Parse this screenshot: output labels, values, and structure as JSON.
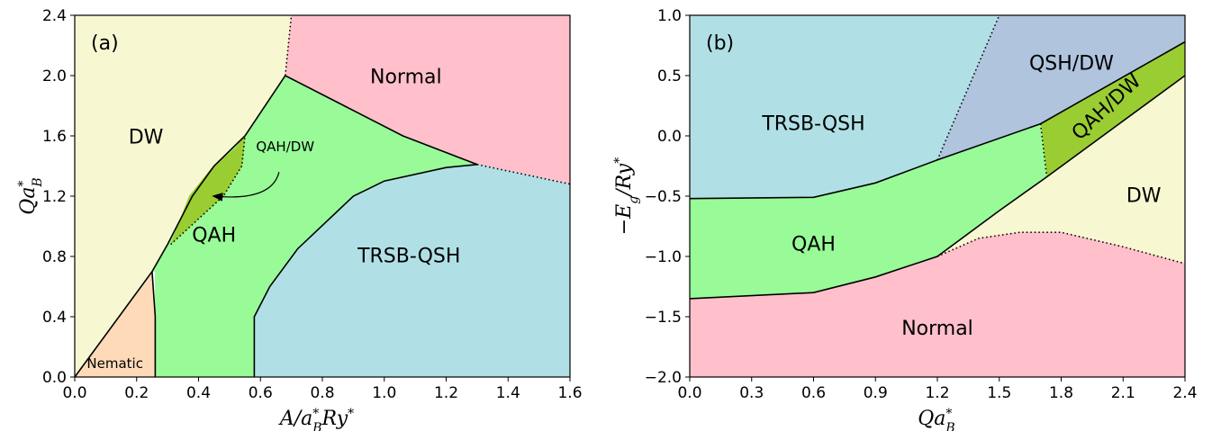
{
  "chart_data": [
    {
      "type": "area",
      "panel_label": "(a)",
      "xlabel": "A/a_B^* Ry^*",
      "ylabel": "Qa_B^*",
      "xlim": [
        0.0,
        1.6
      ],
      "ylim": [
        0.0,
        2.4
      ],
      "xticks": [
        "0.0",
        "0.2",
        "0.4",
        "0.6",
        "0.8",
        "1.0",
        "1.2",
        "1.4",
        "1.6"
      ],
      "yticks": [
        "0.0",
        "0.4",
        "0.8",
        "1.2",
        "1.6",
        "2.0",
        "2.4"
      ],
      "regions": [
        {
          "name": "DW",
          "label": "DW",
          "color": "#f7f7d2",
          "label_at": [
            0.23,
            1.55
          ],
          "polygon": [
            [
              0,
              0
            ],
            [
              0.25,
              0.7
            ],
            [
              0.3,
              0.88
            ],
            [
              0.38,
              1.2
            ],
            [
              0.45,
              1.4
            ],
            [
              0.55,
              1.6
            ],
            [
              0.68,
              2.0
            ],
            [
              0.7,
              2.4
            ],
            [
              0,
              2.4
            ]
          ]
        },
        {
          "name": "Normal",
          "label": "Normal",
          "color": "#ffc0cb",
          "label_at": [
            1.07,
            1.95
          ],
          "polygon": [
            [
              0.7,
              2.4
            ],
            [
              1.6,
              2.4
            ],
            [
              1.6,
              1.28
            ],
            [
              1.3,
              1.41
            ],
            [
              1.06,
              1.6
            ],
            [
              0.68,
              2.0
            ]
          ]
        },
        {
          "name": "QAH",
          "label": "QAH",
          "color": "#98fb98",
          "label_at": [
            0.45,
            0.9
          ],
          "polygon": [
            [
              0.25,
              0.7
            ],
            [
              0.3,
              0.88
            ],
            [
              0.38,
              1.2
            ],
            [
              0.45,
              1.4
            ],
            [
              0.55,
              1.6
            ],
            [
              0.68,
              2.0
            ],
            [
              1.06,
              1.6
            ],
            [
              1.3,
              1.41
            ],
            [
              1.2,
              1.39
            ],
            [
              1.0,
              1.3
            ],
            [
              0.9,
              1.2
            ],
            [
              0.72,
              0.85
            ],
            [
              0.63,
              0.6
            ],
            [
              0.58,
              0.4
            ],
            [
              0.58,
              0.0
            ],
            [
              0.26,
              0.0
            ],
            [
              0.26,
              0.4
            ],
            [
              0.26,
              0.7
            ]
          ]
        },
        {
          "name": "QAH/DW",
          "label": "QAH/DW",
          "color": "#9acd32",
          "label_at": [
            0.68,
            1.5
          ],
          "polygon": [
            [
              0.31,
              0.88
            ],
            [
              0.37,
              1.2
            ],
            [
              0.44,
              1.38
            ],
            [
              0.52,
              1.52
            ],
            [
              0.55,
              1.6
            ],
            [
              0.54,
              1.4
            ],
            [
              0.48,
              1.2
            ]
          ]
        },
        {
          "name": "Nematic",
          "label": "Nematic",
          "color": "#ffdab9",
          "label_at": [
            0.13,
            0.06
          ],
          "polygon": [
            [
              0,
              0
            ],
            [
              0.25,
              0.7
            ],
            [
              0.26,
              0.4
            ],
            [
              0.26,
              0.0
            ]
          ]
        },
        {
          "name": "TRSB-QSH",
          "label": "TRSB-QSH",
          "color": "#b0e0e6",
          "label_at": [
            1.08,
            0.76
          ],
          "polygon": [
            [
              0.58,
              0.0
            ],
            [
              0.58,
              0.4
            ],
            [
              0.63,
              0.6
            ],
            [
              0.72,
              0.85
            ],
            [
              0.9,
              1.2
            ],
            [
              1.0,
              1.3
            ],
            [
              1.2,
              1.39
            ],
            [
              1.3,
              1.41
            ],
            [
              1.6,
              1.28
            ],
            [
              1.6,
              0.0
            ]
          ]
        }
      ],
      "solid_boundaries": [
        [
          [
            0,
            0
          ],
          [
            0.25,
            0.7
          ],
          [
            0.3,
            0.88
          ],
          [
            0.38,
            1.2
          ],
          [
            0.45,
            1.4
          ],
          [
            0.55,
            1.6
          ],
          [
            0.68,
            2.0
          ],
          [
            1.06,
            1.6
          ],
          [
            1.3,
            1.41
          ]
        ],
        [
          [
            0.25,
            0.7
          ],
          [
            0.26,
            0.4
          ],
          [
            0.26,
            0.0
          ]
        ],
        [
          [
            0.58,
            0.0
          ],
          [
            0.58,
            0.4
          ],
          [
            0.63,
            0.6
          ],
          [
            0.72,
            0.85
          ],
          [
            0.9,
            1.2
          ],
          [
            1.0,
            1.3
          ],
          [
            1.2,
            1.39
          ],
          [
            1.3,
            1.41
          ]
        ]
      ],
      "dotted_boundaries": [
        [
          [
            0.68,
            2.0
          ],
          [
            0.7,
            2.4
          ]
        ],
        [
          [
            1.3,
            1.41
          ],
          [
            1.6,
            1.28
          ]
        ],
        [
          [
            0.31,
            0.88
          ],
          [
            0.48,
            1.2
          ],
          [
            0.54,
            1.4
          ],
          [
            0.55,
            1.6
          ]
        ]
      ],
      "arrow": {
        "from": [
          0.66,
          1.36
        ],
        "to": [
          0.45,
          1.2
        ]
      }
    },
    {
      "type": "area",
      "panel_label": "(b)",
      "xlabel": "Qa_B^*",
      "ylabel": "−E_g/Ry^*",
      "xlim": [
        0.0,
        2.4
      ],
      "ylim": [
        -2.0,
        1.0
      ],
      "xticks": [
        "0.0",
        "0.3",
        "0.6",
        "0.9",
        "1.2",
        "1.5",
        "1.8",
        "2.1",
        "2.4"
      ],
      "yticks": [
        "−2.0",
        "−1.5",
        "−1.0",
        "−0.5",
        "0.0",
        "0.5",
        "1.0"
      ],
      "regions": [
        {
          "name": "TRSB-QSH",
          "label": "TRSB-QSH",
          "color": "#b0e0e6",
          "label_at": [
            0.6,
            0.05
          ],
          "polygon": [
            [
              0,
              1.0
            ],
            [
              1.5,
              1.0
            ],
            [
              1.2,
              -0.2
            ],
            [
              0.9,
              -0.39
            ],
            [
              0.6,
              -0.51
            ],
            [
              0,
              -0.52
            ]
          ]
        },
        {
          "name": "QSH/DW",
          "label": "QSH/DW",
          "color": "#b0c4de",
          "label_at": [
            1.85,
            0.55
          ],
          "polygon": [
            [
              1.5,
              1.0
            ],
            [
              2.4,
              1.0
            ],
            [
              2.4,
              0.78
            ],
            [
              1.7,
              0.1
            ],
            [
              1.2,
              -0.2
            ]
          ]
        },
        {
          "name": "QAH/DW",
          "label": "QAH/DW",
          "color": "#9acd32",
          "label_at": [
            2.04,
            0.2
          ],
          "polygon": [
            [
              1.7,
              0.1
            ],
            [
              2.4,
              0.78
            ],
            [
              2.4,
              0.5
            ],
            [
              1.73,
              -0.34
            ]
          ]
        },
        {
          "name": "DW",
          "label": "DW",
          "color": "#f7f7d2",
          "label_at": [
            2.2,
            -0.55
          ],
          "polygon": [
            [
              1.73,
              -0.34
            ],
            [
              2.4,
              0.5
            ],
            [
              2.4,
              -1.06
            ],
            [
              2.1,
              -0.92
            ],
            [
              1.8,
              -0.8
            ],
            [
              1.6,
              -0.8
            ],
            [
              1.4,
              -0.85
            ],
            [
              1.2,
              -1.0
            ],
            [
              1.5,
              -0.62
            ]
          ]
        },
        {
          "name": "QAH",
          "label": "QAH",
          "color": "#98fb98",
          "label_at": [
            0.6,
            -0.95
          ],
          "polygon": [
            [
              0,
              -0.52
            ],
            [
              0.6,
              -0.51
            ],
            [
              0.9,
              -0.39
            ],
            [
              1.2,
              -0.2
            ],
            [
              1.7,
              0.1
            ],
            [
              1.73,
              -0.34
            ],
            [
              1.5,
              -0.62
            ],
            [
              1.2,
              -1.0
            ],
            [
              0.9,
              -1.17
            ],
            [
              0.6,
              -1.3
            ],
            [
              0,
              -1.35
            ]
          ]
        },
        {
          "name": "Normal",
          "label": "Normal",
          "color": "#ffc0cb",
          "label_at": [
            1.2,
            -1.65
          ],
          "polygon": [
            [
              0,
              -1.35
            ],
            [
              0.6,
              -1.3
            ],
            [
              0.9,
              -1.17
            ],
            [
              1.2,
              -1.0
            ],
            [
              1.4,
              -0.85
            ],
            [
              1.6,
              -0.8
            ],
            [
              1.8,
              -0.8
            ],
            [
              2.1,
              -0.92
            ],
            [
              2.4,
              -1.06
            ],
            [
              2.4,
              -2.0
            ],
            [
              0,
              -2.0
            ]
          ]
        }
      ],
      "solid_boundaries": [
        [
          [
            0,
            -0.52
          ],
          [
            0.6,
            -0.51
          ],
          [
            0.9,
            -0.39
          ],
          [
            1.2,
            -0.2
          ],
          [
            1.7,
            0.1
          ],
          [
            2.4,
            0.78
          ]
        ],
        [
          [
            0,
            -1.35
          ],
          [
            0.6,
            -1.3
          ],
          [
            0.9,
            -1.17
          ],
          [
            1.2,
            -1.0
          ],
          [
            1.5,
            -0.62
          ],
          [
            1.73,
            -0.34
          ],
          [
            2.4,
            0.5
          ]
        ]
      ],
      "dotted_boundaries": [
        [
          [
            1.2,
            -0.2
          ],
          [
            1.5,
            1.0
          ]
        ],
        [
          [
            1.7,
            0.1
          ],
          [
            1.73,
            -0.34
          ]
        ],
        [
          [
            1.2,
            -1.0
          ],
          [
            1.4,
            -0.85
          ],
          [
            1.6,
            -0.8
          ],
          [
            1.8,
            -0.8
          ],
          [
            2.1,
            -0.92
          ],
          [
            2.4,
            -1.06
          ]
        ]
      ]
    }
  ]
}
